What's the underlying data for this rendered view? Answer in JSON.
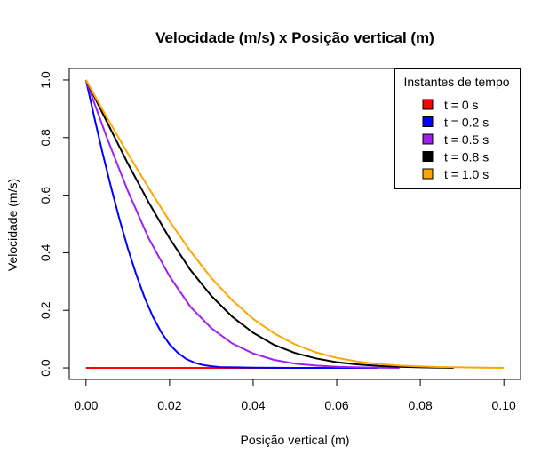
{
  "chart_data": {
    "type": "line",
    "title": "Velocidade (m/s) x Posição vertical (m)",
    "xlabel": "Posição vertical (m)",
    "ylabel": "Velocidade (m/s)",
    "xlim": [
      -0.004,
      0.104
    ],
    "ylim": [
      -0.04,
      1.04
    ],
    "x_ticks": [
      "0.00",
      "0.02",
      "0.04",
      "0.06",
      "0.08",
      "0.10"
    ],
    "y_ticks": [
      "0.0",
      "0.2",
      "0.4",
      "0.6",
      "0.8",
      "1.0"
    ],
    "grid": false,
    "legend": {
      "title": "Instantes de tempo",
      "position": "top-right"
    },
    "series": [
      {
        "name": "t = 0 s",
        "color": "#ff0000",
        "x": [
          0.0,
          0.02,
          0.04,
          0.06,
          0.068
        ],
        "y": [
          0.0,
          0.0,
          0.0,
          0.0,
          0.0
        ]
      },
      {
        "name": "t = 0.2 s",
        "color": "#0000ff",
        "x": [
          0.0,
          0.002,
          0.004,
          0.006,
          0.008,
          0.01,
          0.012,
          0.014,
          0.016,
          0.018,
          0.02,
          0.022,
          0.024,
          0.026,
          0.028,
          0.03,
          0.032,
          0.036,
          0.04,
          0.05,
          0.06,
          0.07
        ],
        "y": [
          1.0,
          0.87,
          0.745,
          0.628,
          0.518,
          0.415,
          0.325,
          0.245,
          0.178,
          0.124,
          0.082,
          0.052,
          0.031,
          0.018,
          0.01,
          0.006,
          0.003,
          0.002,
          0.001,
          0.0,
          0.0,
          0.0
        ]
      },
      {
        "name": "t = 0.5 s",
        "color": "#a020f0",
        "x": [
          0.0,
          0.005,
          0.01,
          0.015,
          0.02,
          0.025,
          0.03,
          0.035,
          0.04,
          0.045,
          0.05,
          0.055,
          0.06,
          0.065,
          0.07,
          0.075
        ],
        "y": [
          1.0,
          0.8,
          0.615,
          0.45,
          0.318,
          0.212,
          0.138,
          0.085,
          0.05,
          0.028,
          0.015,
          0.008,
          0.004,
          0.002,
          0.001,
          0.0
        ]
      },
      {
        "name": "t = 0.8 s",
        "color": "#000000",
        "x": [
          0.0,
          0.005,
          0.01,
          0.015,
          0.02,
          0.025,
          0.03,
          0.035,
          0.04,
          0.045,
          0.05,
          0.055,
          0.06,
          0.065,
          0.07,
          0.075,
          0.08,
          0.085,
          0.088
        ],
        "y": [
          1.0,
          0.855,
          0.71,
          0.575,
          0.45,
          0.34,
          0.25,
          0.178,
          0.122,
          0.08,
          0.052,
          0.033,
          0.02,
          0.012,
          0.007,
          0.004,
          0.002,
          0.001,
          0.0
        ]
      },
      {
        "name": "t = 1.0 s",
        "color": "#ffa500",
        "x": [
          0.0,
          0.005,
          0.01,
          0.015,
          0.02,
          0.025,
          0.03,
          0.035,
          0.04,
          0.045,
          0.05,
          0.055,
          0.06,
          0.065,
          0.07,
          0.075,
          0.08,
          0.085,
          0.09,
          0.095,
          0.1
        ],
        "y": [
          1.0,
          0.87,
          0.745,
          0.625,
          0.51,
          0.405,
          0.312,
          0.235,
          0.17,
          0.12,
          0.082,
          0.054,
          0.035,
          0.022,
          0.013,
          0.008,
          0.005,
          0.003,
          0.002,
          0.001,
          0.0
        ]
      }
    ]
  }
}
